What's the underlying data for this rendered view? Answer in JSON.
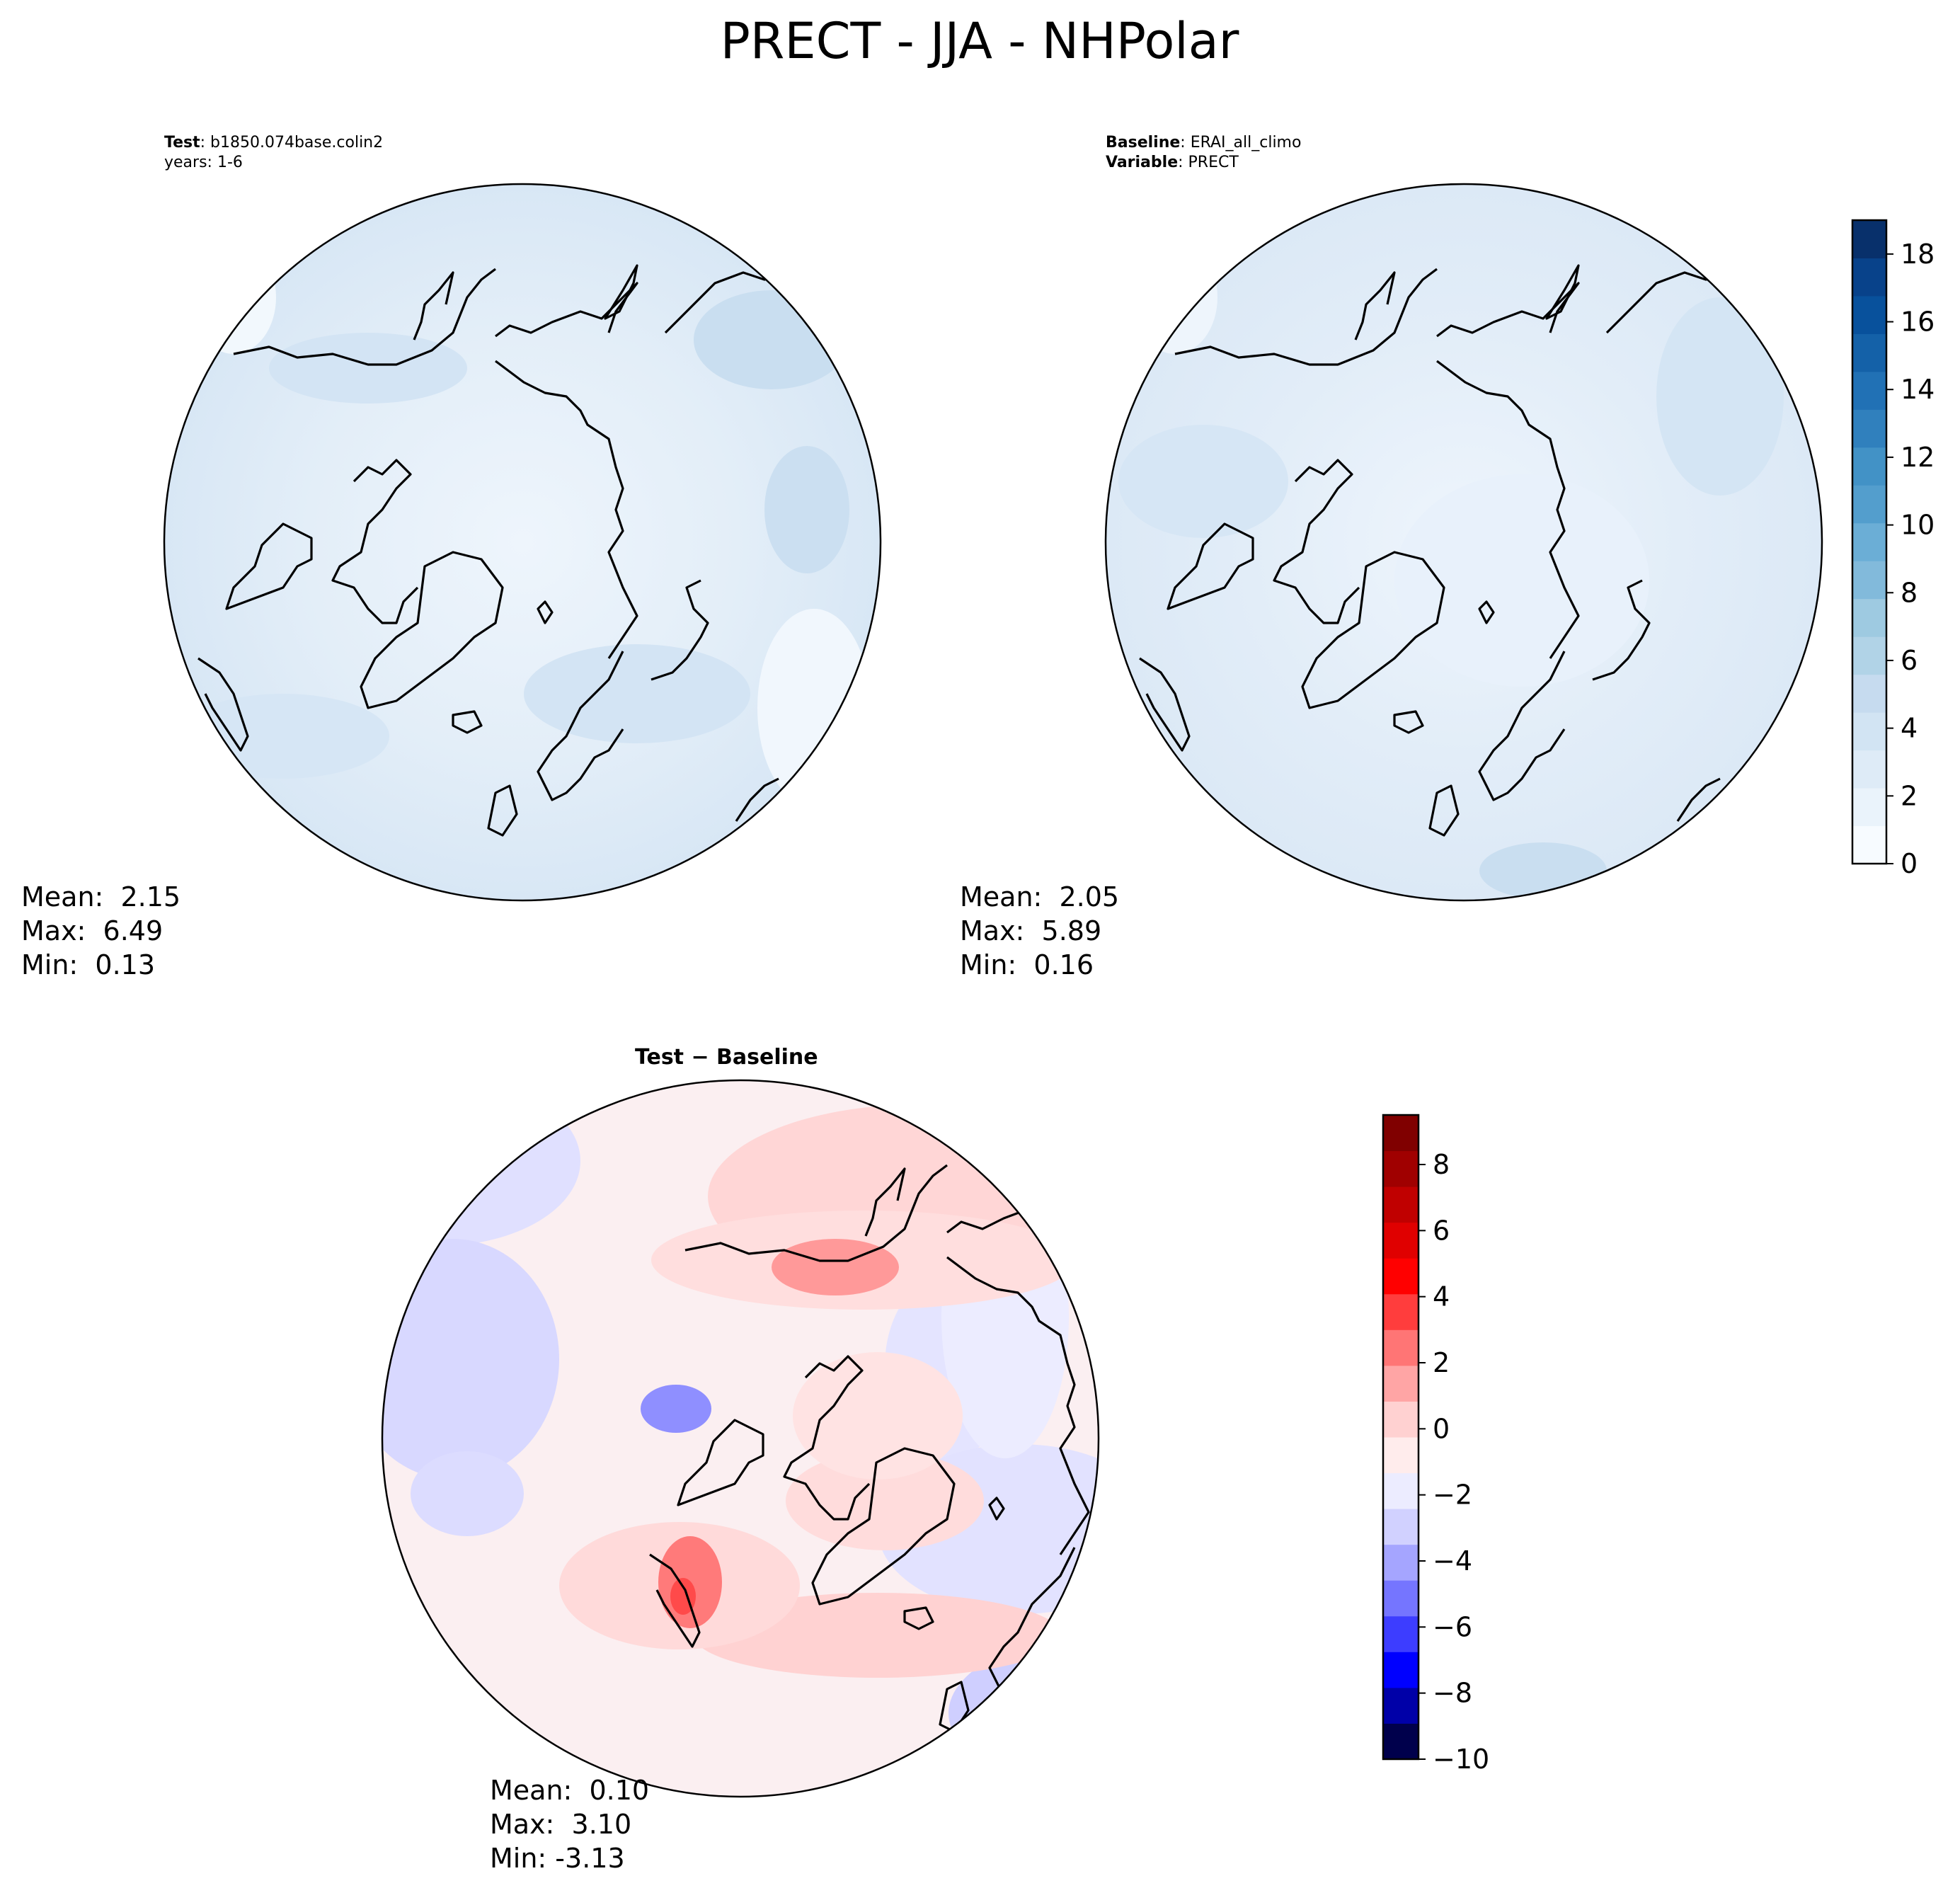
{
  "figure": {
    "title": "PRECT - JJA - NHPolar"
  },
  "colors": {
    "blues": [
      "#f7fbff",
      "#eaf3fb",
      "#deebf7",
      "#d2e4f3",
      "#c6dbef",
      "#b1d3e7",
      "#9ecae1",
      "#82badb",
      "#6baed6",
      "#539ecd",
      "#4292c6",
      "#3080bd",
      "#2171b5",
      "#1461a8",
      "#08519c",
      "#08428a",
      "#08306b"
    ],
    "seismic": [
      "#00004c",
      "#0000a8",
      "#0000ff",
      "#3d3dff",
      "#7575ff",
      "#a5a5ff",
      "#d1d1ff",
      "#ececff",
      "#ffecec",
      "#ffd1d1",
      "#ffa5a5",
      "#ff7575",
      "#ff3d3d",
      "#ff0000",
      "#e00000",
      "#c00000",
      "#a00000",
      "#800000"
    ],
    "coastline": "#000000"
  },
  "chart_data": [
    {
      "type": "heatmap",
      "name": "test",
      "header": [
        {
          "key": "Test",
          "value": ": b1850.074base.colin2"
        },
        {
          "key": "",
          "value": "years: 1-6"
        }
      ],
      "stats": {
        "mean": "Mean:  2.15",
        "max": "Max:  6.49",
        "min": "Min:  0.13"
      },
      "field_range": [
        0.13,
        6.49
      ],
      "colormap": "Blues",
      "projection": "north polar stereographic"
    },
    {
      "type": "heatmap",
      "name": "baseline",
      "header": [
        {
          "key": "Baseline",
          "value": ": ERAI_all_climo"
        },
        {
          "key": "Variable",
          "value": ": PRECT"
        }
      ],
      "stats": {
        "mean": "Mean:  2.05",
        "max": "Max:  5.89",
        "min": "Min:  0.16"
      },
      "field_range": [
        0.16,
        5.89
      ],
      "colormap": "Blues",
      "colorbar": {
        "vmin": 0,
        "vmax": 19,
        "levels": 19,
        "ticks": [
          0,
          2,
          4,
          6,
          8,
          10,
          12,
          14,
          16,
          18
        ],
        "tick_labels": [
          "0",
          "2",
          "4",
          "6",
          "8",
          "10",
          "12",
          "14",
          "16",
          "18"
        ]
      },
      "projection": "north polar stereographic"
    },
    {
      "type": "heatmap",
      "name": "difference",
      "header": [
        {
          "key": "Test − Baseline",
          "value": ""
        }
      ],
      "stats": {
        "mean": "Mean:  0.10",
        "max": "Max:  3.10",
        "min": "Min: -3.13"
      },
      "field_range": [
        -3.13,
        3.1
      ],
      "colormap": "seismic",
      "colorbar": {
        "vmin": -10,
        "vmax": 9.5,
        "levels": 18,
        "ticks": [
          -10,
          -8,
          -6,
          -4,
          -2,
          0,
          2,
          4,
          6,
          8
        ],
        "tick_labels": [
          "−10",
          "−8",
          "−6",
          "−4",
          "−2",
          "0",
          "2",
          "4",
          "6",
          "8"
        ]
      },
      "projection": "north polar stereographic"
    }
  ]
}
